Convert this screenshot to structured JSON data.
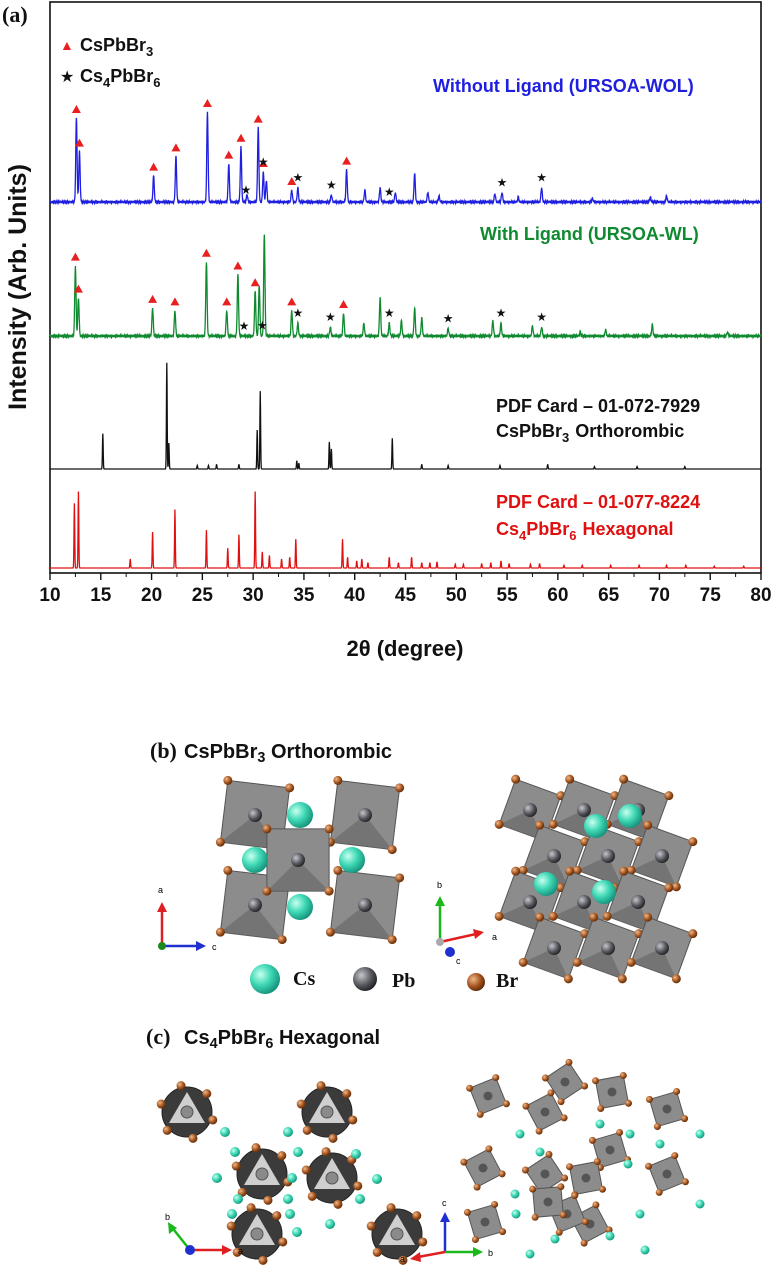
{
  "chart_data": {
    "type": "line",
    "panel_label": "(a)",
    "xlabel": "2θ (degree)",
    "ylabel": "Intensity (Arb. Units)",
    "xlim": [
      10,
      80
    ],
    "xticks": [
      10,
      15,
      20,
      25,
      30,
      35,
      40,
      45,
      50,
      55,
      60,
      65,
      70,
      75,
      80
    ],
    "legend": [
      {
        "symbol": "▲",
        "name": "CsPbBr",
        "sub": "3",
        "color": "#e82020"
      },
      {
        "symbol": "★",
        "name": "Cs",
        "sub": "4",
        "name2": "PbBr",
        "sub2": "6",
        "color": "#111111"
      }
    ],
    "series": [
      {
        "name": "Without Ligand (URSOA-WOL)",
        "color": "#1f1fe0",
        "baseline": 0,
        "peaks": [
          [
            12.6,
            0.7
          ],
          [
            12.9,
            0.42
          ],
          [
            20.2,
            0.22
          ],
          [
            22.4,
            0.38
          ],
          [
            25.5,
            0.75
          ],
          [
            27.6,
            0.32
          ],
          [
            28.8,
            0.46
          ],
          [
            29.4,
            0.06
          ],
          [
            30.5,
            0.62
          ],
          [
            31.0,
            0.25
          ],
          [
            31.3,
            0.18
          ],
          [
            33.8,
            0.1
          ],
          [
            34.4,
            0.12
          ],
          [
            37.7,
            0.06
          ],
          [
            39.2,
            0.27
          ],
          [
            41.0,
            0.1
          ],
          [
            42.5,
            0.12
          ],
          [
            44.0,
            0.08
          ],
          [
            45.9,
            0.24
          ],
          [
            47.2,
            0.08
          ],
          [
            48.3,
            0.05
          ],
          [
            53.8,
            0.07
          ],
          [
            54.5,
            0.08
          ],
          [
            56.1,
            0.04
          ],
          [
            58.4,
            0.12
          ],
          [
            63.4,
            0.03
          ],
          [
            69.1,
            0.04
          ],
          [
            70.7,
            0.05
          ]
        ],
        "triangles": [
          12.6,
          12.9,
          20.2,
          22.4,
          25.5,
          27.6,
          28.8,
          30.5,
          31.0,
          33.8,
          39.2
        ],
        "stars": [
          29.3,
          31.0,
          34.4,
          37.7,
          43.4,
          54.5,
          58.4
        ]
      },
      {
        "name": "With Ligand (URSOA-WL)",
        "color": "#108a30",
        "baseline": 1,
        "peaks": [
          [
            12.5,
            0.55
          ],
          [
            12.8,
            0.3
          ],
          [
            20.1,
            0.22
          ],
          [
            22.3,
            0.2
          ],
          [
            25.4,
            0.58
          ],
          [
            27.4,
            0.2
          ],
          [
            28.5,
            0.48
          ],
          [
            30.2,
            0.35
          ],
          [
            30.6,
            0.4
          ],
          [
            31.1,
            0.8
          ],
          [
            33.8,
            0.2
          ],
          [
            34.4,
            0.1
          ],
          [
            37.6,
            0.07
          ],
          [
            38.9,
            0.18
          ],
          [
            40.9,
            0.1
          ],
          [
            42.5,
            0.3
          ],
          [
            43.4,
            0.1
          ],
          [
            44.6,
            0.12
          ],
          [
            45.9,
            0.22
          ],
          [
            46.6,
            0.14
          ],
          [
            49.2,
            0.06
          ],
          [
            53.6,
            0.12
          ],
          [
            54.4,
            0.1
          ],
          [
            57.5,
            0.08
          ],
          [
            58.4,
            0.07
          ],
          [
            62.2,
            0.03
          ],
          [
            64.7,
            0.05
          ],
          [
            69.3,
            0.09
          ],
          [
            76.7,
            0.03
          ]
        ],
        "triangles": [
          12.5,
          12.8,
          20.1,
          22.3,
          25.4,
          27.4,
          28.5,
          30.2,
          33.8,
          38.9
        ],
        "stars": [
          29.1,
          30.9,
          34.4,
          37.6,
          43.4,
          49.2,
          54.4,
          58.4
        ]
      },
      {
        "name": "PDF Card – 01-072-7929",
        "phase": "Orthorombic",
        "color": "#111111",
        "baseline": 2,
        "peaks": [
          [
            15.2,
            0.3
          ],
          [
            21.5,
            0.9
          ],
          [
            21.7,
            0.22
          ],
          [
            24.5,
            0.03
          ],
          [
            25.6,
            0.03
          ],
          [
            26.4,
            0.04
          ],
          [
            28.6,
            0.04
          ],
          [
            30.4,
            0.33
          ],
          [
            30.7,
            0.66
          ],
          [
            34.3,
            0.07
          ],
          [
            34.5,
            0.05
          ],
          [
            37.5,
            0.23
          ],
          [
            37.7,
            0.17
          ],
          [
            43.7,
            0.26
          ],
          [
            46.6,
            0.04
          ],
          [
            49.2,
            0.03
          ],
          [
            54.3,
            0.03
          ],
          [
            59.0,
            0.04
          ],
          [
            63.6,
            0.02
          ],
          [
            67.8,
            0.02
          ],
          [
            72.5,
            0.02
          ]
        ],
        "triangles": [],
        "stars": []
      },
      {
        "name": "PDF Card – 01-077-8224",
        "phase": "Hexagonal",
        "color": "#e01010",
        "baseline": 3,
        "peaks": [
          [
            12.4,
            0.72
          ],
          [
            12.8,
            0.85
          ],
          [
            17.9,
            0.1
          ],
          [
            20.1,
            0.4
          ],
          [
            22.3,
            0.65
          ],
          [
            25.4,
            0.42
          ],
          [
            27.5,
            0.22
          ],
          [
            28.6,
            0.37
          ],
          [
            30.2,
            0.85
          ],
          [
            30.9,
            0.18
          ],
          [
            31.6,
            0.14
          ],
          [
            32.8,
            0.1
          ],
          [
            33.6,
            0.12
          ],
          [
            34.2,
            0.32
          ],
          [
            38.8,
            0.32
          ],
          [
            39.3,
            0.12
          ],
          [
            40.2,
            0.08
          ],
          [
            40.7,
            0.1
          ],
          [
            41.3,
            0.06
          ],
          [
            43.4,
            0.12
          ],
          [
            44.3,
            0.06
          ],
          [
            45.6,
            0.12
          ],
          [
            46.6,
            0.06
          ],
          [
            47.4,
            0.06
          ],
          [
            48.1,
            0.07
          ],
          [
            49.9,
            0.04
          ],
          [
            50.7,
            0.04
          ],
          [
            52.5,
            0.05
          ],
          [
            53.4,
            0.06
          ],
          [
            54.4,
            0.08
          ],
          [
            55.2,
            0.05
          ],
          [
            57.3,
            0.04
          ],
          [
            58.2,
            0.05
          ],
          [
            60.6,
            0.03
          ],
          [
            62.4,
            0.03
          ],
          [
            65.2,
            0.03
          ],
          [
            68.0,
            0.03
          ],
          [
            70.7,
            0.03
          ],
          [
            72.6,
            0.03
          ],
          [
            75.4,
            0.02
          ],
          [
            78.3,
            0.02
          ]
        ],
        "triangles": [],
        "stars": []
      }
    ]
  },
  "labels": {
    "wol": "Without Ligand (URSOA-WOL)",
    "wl": "With Ligand (URSOA-WL)",
    "pdf1_card": "PDF Card – 01-072-7929",
    "pdf1_phase_pre": "CsPbBr",
    "pdf1_phase_sub": "3",
    "pdf1_phase_post": "Orthorombic",
    "pdf2_card": "PDF Card – 01-077-8224",
    "pdf2_phase_pre": "Cs",
    "pdf2_phase_sub1": "4",
    "pdf2_phase_mid": "PbBr",
    "pdf2_phase_sub2": "6",
    "pdf2_phase_post": "Hexagonal"
  },
  "panel_b": {
    "label": "(b)",
    "title_pre": "CsPbBr",
    "title_sub": "3",
    "title_post": "Orthorombic",
    "axis1": {
      "v": "a",
      "h": "c"
    },
    "axis2": {
      "v": "b",
      "h": "a",
      "d": "c"
    },
    "legend": [
      {
        "name": "Cs",
        "color": "#3fd9b5"
      },
      {
        "name": "Pb",
        "color": "#55575c"
      },
      {
        "name": "Br",
        "color": "#a0521d"
      }
    ]
  },
  "panel_c": {
    "label": "(c)",
    "title_pre": "Cs",
    "title_sub1": "4",
    "title_mid": "PbBr",
    "title_sub2": "6",
    "title_post": "Hexagonal",
    "axis1": {
      "v": "b",
      "h": "a"
    },
    "axis2": {
      "v": "c",
      "h": "b",
      "d": "a"
    }
  }
}
